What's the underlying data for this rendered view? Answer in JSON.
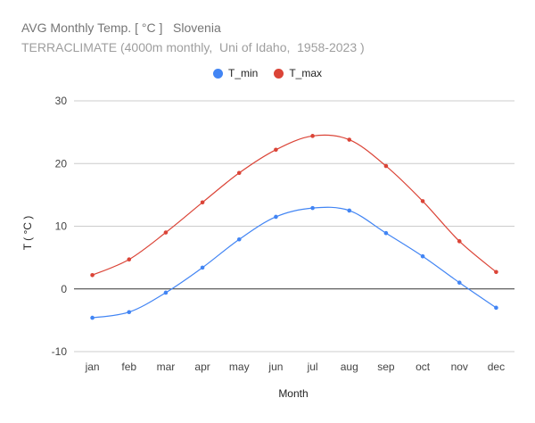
{
  "chart_data": {
    "type": "line",
    "title": "AVG Monthly Temp. [ °C ]   Slovenia",
    "subtitle": "TERRACLIMATE (4000m monthly,  Uni of Idaho,  1958-2023 )",
    "xlabel": "Month",
    "ylabel": "T ( °C )",
    "categories": [
      "jan",
      "feb",
      "mar",
      "apr",
      "may",
      "jun",
      "jul",
      "aug",
      "sep",
      "oct",
      "nov",
      "dec"
    ],
    "ylim": [
      -10,
      30
    ],
    "yticks": [
      "30",
      "20",
      "10",
      "0",
      "-10"
    ],
    "grid": true,
    "legend_position": "top-center",
    "series": [
      {
        "name": "T_min",
        "color": "#4285f4",
        "values": [
          -4.6,
          -3.7,
          -0.6,
          3.4,
          7.9,
          11.5,
          12.9,
          12.5,
          8.9,
          5.2,
          1.0,
          -3.0
        ]
      },
      {
        "name": "T_max",
        "color": "#db4437",
        "values": [
          2.2,
          4.7,
          9.0,
          13.8,
          18.5,
          22.2,
          24.4,
          23.8,
          19.6,
          14.0,
          7.6,
          2.7
        ]
      }
    ]
  }
}
